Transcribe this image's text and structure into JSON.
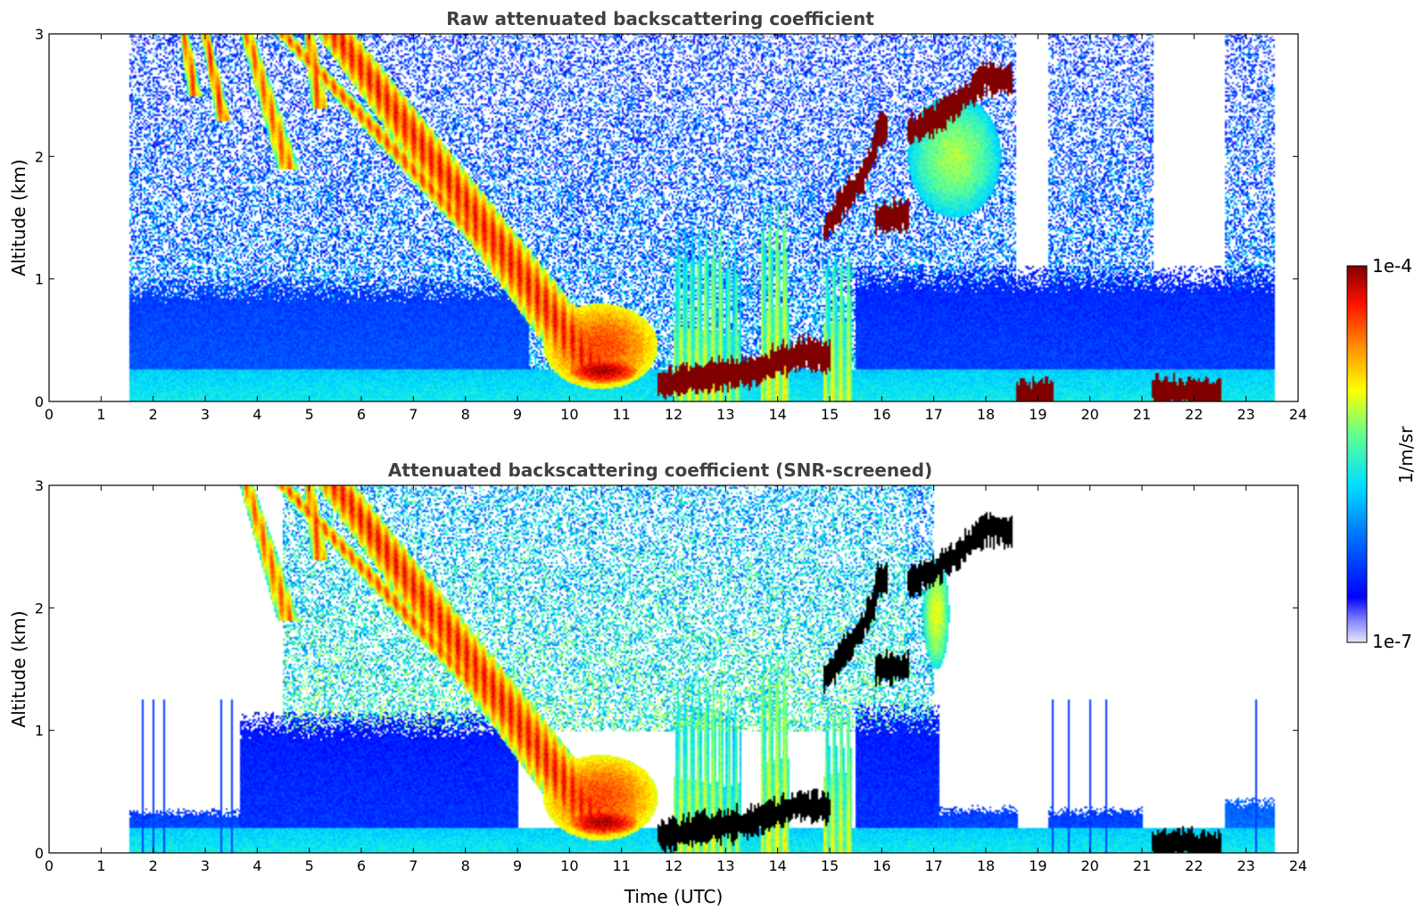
{
  "chart_data": [
    {
      "type": "heatmap",
      "title": "Raw attenuated backscattering coefficient",
      "xlabel": "",
      "ylabel": "Altitude (km)",
      "xlim": [
        0,
        24
      ],
      "ylim": [
        0,
        3
      ],
      "xticks": [
        "0",
        "1",
        "2",
        "3",
        "4",
        "5",
        "6",
        "7",
        "8",
        "9",
        "10",
        "11",
        "12",
        "13",
        "14",
        "15",
        "16",
        "17",
        "18",
        "19",
        "20",
        "21",
        "22",
        "23",
        "24"
      ],
      "yticks": [
        "0",
        "1",
        "2",
        "3"
      ],
      "data_start_hour": 1.55,
      "data_end_hour": 23.55,
      "features": [
        {
          "kind": "noise",
          "x": [
            1.55,
            18.55
          ],
          "y": [
            0,
            3
          ],
          "level": 0.35
        },
        {
          "kind": "noise",
          "x": [
            19.2,
            21.2
          ],
          "y": [
            0,
            3
          ],
          "level": 0.35
        },
        {
          "kind": "noise",
          "x": [
            22.6,
            23.55
          ],
          "y": [
            0,
            3
          ],
          "level": 0.35
        },
        {
          "kind": "noise",
          "x": [
            18.55,
            19.2
          ],
          "y": [
            0,
            0.2
          ],
          "level": 0.35
        },
        {
          "kind": "noise",
          "x": [
            21.2,
            22.6
          ],
          "y": [
            0,
            0.25
          ],
          "level": 0.35
        },
        {
          "kind": "boundary_layer",
          "x": [
            1.55,
            9.2
          ],
          "y": [
            0,
            1.0
          ],
          "level": 0.25
        },
        {
          "kind": "boundary_layer",
          "x": [
            15.5,
            23.55
          ],
          "y": [
            0,
            1.1
          ],
          "level": 0.22
        },
        {
          "kind": "surface",
          "x": [
            1.55,
            23.55
          ],
          "y": [
            0,
            0.25
          ],
          "level": 0.45
        },
        {
          "kind": "precip_band",
          "start": [
            5.5,
            3.0
          ],
          "end": [
            10.5,
            0.25
          ],
          "width_h": 1.2,
          "level": 0.85
        },
        {
          "kind": "precip_band",
          "start": [
            4.5,
            3.0
          ],
          "end": [
            9.0,
            1.0
          ],
          "width_h": 0.5,
          "level": 0.8
        },
        {
          "kind": "precip_band",
          "start": [
            2.6,
            3.0
          ],
          "end": [
            2.8,
            2.5
          ],
          "width_h": 0.25,
          "level": 0.8
        },
        {
          "kind": "precip_band",
          "start": [
            3.0,
            3.0
          ],
          "end": [
            3.35,
            2.3
          ],
          "width_h": 0.25,
          "level": 0.82
        },
        {
          "kind": "precip_band",
          "start": [
            3.8,
            3.0
          ],
          "end": [
            4.6,
            1.9
          ],
          "width_h": 0.4,
          "level": 0.78
        },
        {
          "kind": "precip_band",
          "start": [
            5.0,
            3.0
          ],
          "end": [
            5.2,
            2.4
          ],
          "width_h": 0.3,
          "level": 0.8
        },
        {
          "kind": "blob",
          "x": [
            9.5,
            11.7
          ],
          "y": [
            0.1,
            0.8
          ],
          "level": 0.85
        },
        {
          "kind": "blob",
          "x": [
            10.0,
            11.3
          ],
          "y": [
            0.15,
            0.35
          ],
          "level": 0.97
        },
        {
          "kind": "streak",
          "x": [
            12.0,
            12.9
          ],
          "y": [
            0.0,
            1.4
          ],
          "level": 0.6
        },
        {
          "kind": "streak",
          "x": [
            12.9,
            13.3
          ],
          "y": [
            0.0,
            1.3
          ],
          "level": 0.55
        },
        {
          "kind": "streak",
          "x": [
            13.7,
            14.2
          ],
          "y": [
            0.0,
            1.6
          ],
          "level": 0.62
        },
        {
          "kind": "streak",
          "x": [
            14.9,
            15.4
          ],
          "y": [
            0.0,
            1.2
          ],
          "level": 0.6
        },
        {
          "kind": "cloud_line",
          "points": [
            [
              11.7,
              0.13
            ],
            [
              12.5,
              0.2
            ],
            [
              13.5,
              0.25
            ],
            [
              14.5,
              0.4
            ],
            [
              15.0,
              0.35
            ]
          ],
          "level": 1.0
        },
        {
          "kind": "cloud_line",
          "points": [
            [
              14.9,
              1.4
            ],
            [
              15.2,
              1.6
            ],
            [
              15.6,
              1.8
            ],
            [
              15.9,
              2.1
            ]
          ],
          "level": 1.0
        },
        {
          "kind": "cloud_line",
          "points": [
            [
              15.9,
              2.2
            ],
            [
              16.1,
              2.25
            ]
          ],
          "level": 1.0
        },
        {
          "kind": "cloud_line",
          "points": [
            [
              15.9,
              1.5
            ],
            [
              16.5,
              1.52
            ]
          ],
          "level": 1.0
        },
        {
          "kind": "cloud_line",
          "points": [
            [
              16.5,
              2.2
            ],
            [
              17.0,
              2.3
            ],
            [
              17.5,
              2.45
            ],
            [
              18.0,
              2.65
            ],
            [
              18.5,
              2.62
            ]
          ],
          "level": 1.0
        },
        {
          "kind": "blob",
          "x": [
            16.5,
            18.3
          ],
          "y": [
            1.5,
            2.5
          ],
          "level": 0.6
        },
        {
          "kind": "cloud_line",
          "points": [
            [
              18.6,
              0.05
            ],
            [
              19.3,
              0.04
            ]
          ],
          "level": 1.0
        },
        {
          "kind": "cloud_line",
          "points": [
            [
              21.2,
              0.08
            ],
            [
              22.5,
              0.06
            ]
          ],
          "level": 1.0
        }
      ]
    },
    {
      "type": "heatmap",
      "title": "Attenuated backscattering coefficient (SNR-screened)",
      "xlabel": "Time (UTC)",
      "ylabel": "Altitude (km)",
      "xlim": [
        0,
        24
      ],
      "ylim": [
        0,
        3
      ],
      "xticks": [
        "0",
        "1",
        "2",
        "3",
        "4",
        "5",
        "6",
        "7",
        "8",
        "9",
        "10",
        "11",
        "12",
        "13",
        "14",
        "15",
        "16",
        "17",
        "18",
        "19",
        "20",
        "21",
        "22",
        "23",
        "24"
      ],
      "yticks": [
        "0",
        "1",
        "2",
        "3"
      ],
      "data_start_hour": 1.55,
      "data_end_hour": 23.55,
      "features": [
        {
          "kind": "noise",
          "x": [
            4.5,
            16.5
          ],
          "y": [
            1.0,
            3.0
          ],
          "level": 0.55
        },
        {
          "kind": "noise",
          "x": [
            16.5,
            17.0
          ],
          "y": [
            1.0,
            3.0
          ],
          "level": 0.5
        },
        {
          "kind": "boundary_layer",
          "x": [
            1.55,
            3.7
          ],
          "y": [
            0,
            0.36
          ],
          "level": 0.25
        },
        {
          "kind": "boundary_layer",
          "x": [
            3.7,
            9.0
          ],
          "y": [
            0,
            1.15
          ],
          "level": 0.2
        },
        {
          "kind": "boundary_layer",
          "x": [
            15.5,
            17.1
          ],
          "y": [
            0,
            1.2
          ],
          "level": 0.2
        },
        {
          "kind": "boundary_layer",
          "x": [
            17.1,
            18.6
          ],
          "y": [
            0,
            0.38
          ],
          "level": 0.25
        },
        {
          "kind": "boundary_layer",
          "x": [
            18.6,
            19.2
          ],
          "y": [
            0,
            0.15
          ],
          "level": 0.25
        },
        {
          "kind": "boundary_layer",
          "x": [
            19.2,
            21.0
          ],
          "y": [
            0,
            0.37
          ],
          "level": 0.25
        },
        {
          "kind": "boundary_layer",
          "x": [
            21.0,
            22.6
          ],
          "y": [
            0,
            0.2
          ],
          "level": 0.25
        },
        {
          "kind": "boundary_layer",
          "x": [
            22.6,
            23.55
          ],
          "y": [
            0,
            0.45
          ],
          "level": 0.3
        },
        {
          "kind": "surface",
          "x": [
            1.55,
            23.55
          ],
          "y": [
            0,
            0.2
          ],
          "level": 0.45
        },
        {
          "kind": "precip_band",
          "start": [
            5.5,
            3.0
          ],
          "end": [
            10.5,
            0.25
          ],
          "width_h": 1.2,
          "level": 0.85
        },
        {
          "kind": "precip_band",
          "start": [
            4.5,
            3.0
          ],
          "end": [
            9.0,
            1.0
          ],
          "width_h": 0.5,
          "level": 0.8
        },
        {
          "kind": "precip_band",
          "start": [
            3.8,
            3.0
          ],
          "end": [
            4.6,
            1.9
          ],
          "width_h": 0.4,
          "level": 0.78
        },
        {
          "kind": "precip_band",
          "start": [
            5.0,
            3.0
          ],
          "end": [
            5.2,
            2.4
          ],
          "width_h": 0.3,
          "level": 0.8
        },
        {
          "kind": "blob",
          "x": [
            9.5,
            11.7
          ],
          "y": [
            0.1,
            0.8
          ],
          "level": 0.85
        },
        {
          "kind": "blob",
          "x": [
            10.0,
            11.3
          ],
          "y": [
            0.15,
            0.35
          ],
          "level": 0.97
        },
        {
          "kind": "streak",
          "x": [
            12.0,
            12.9
          ],
          "y": [
            0.0,
            1.4
          ],
          "level": 0.6
        },
        {
          "kind": "streak",
          "x": [
            12.9,
            13.3
          ],
          "y": [
            0.0,
            1.3
          ],
          "level": 0.55
        },
        {
          "kind": "streak",
          "x": [
            13.7,
            14.2
          ],
          "y": [
            0.0,
            1.6
          ],
          "level": 0.62
        },
        {
          "kind": "streak",
          "x": [
            14.9,
            15.4
          ],
          "y": [
            0.0,
            1.2
          ],
          "level": 0.6
        },
        {
          "kind": "blob",
          "x": [
            16.8,
            17.3
          ],
          "y": [
            1.5,
            2.4
          ],
          "level": 0.65
        },
        {
          "kind": "cloud_line",
          "points": [
            [
              11.7,
              0.13
            ],
            [
              12.5,
              0.2
            ],
            [
              13.5,
              0.25
            ],
            [
              14.5,
              0.4
            ],
            [
              15.0,
              0.35
            ]
          ],
          "level": -1
        },
        {
          "kind": "cloud_line",
          "points": [
            [
              14.9,
              1.4
            ],
            [
              15.2,
              1.6
            ],
            [
              15.6,
              1.8
            ],
            [
              15.9,
              2.1
            ]
          ],
          "level": -1
        },
        {
          "kind": "cloud_line",
          "points": [
            [
              15.9,
              2.2
            ],
            [
              16.1,
              2.25
            ]
          ],
          "level": -1
        },
        {
          "kind": "cloud_line",
          "points": [
            [
              15.9,
              1.5
            ],
            [
              16.5,
              1.52
            ]
          ],
          "level": -1
        },
        {
          "kind": "cloud_line",
          "points": [
            [
              16.5,
              2.2
            ],
            [
              17.0,
              2.3
            ],
            [
              17.5,
              2.45
            ],
            [
              18.0,
              2.65
            ],
            [
              18.5,
              2.62
            ]
          ],
          "level": -1
        },
        {
          "kind": "cloud_line",
          "points": [
            [
              21.2,
              0.08
            ],
            [
              22.5,
              0.06
            ]
          ],
          "level": -1
        },
        {
          "kind": "spikes",
          "x": [
            1.8,
            2.0,
            2.2,
            3.3,
            3.5,
            19.3,
            19.6,
            20.0,
            20.3,
            23.2
          ],
          "top": 1.25,
          "level": 0.2
        }
      ]
    }
  ],
  "colorbar": {
    "label": "1/m/sr",
    "max_label": "1e-4",
    "min_label": "1e-7",
    "colormap": "jet"
  }
}
